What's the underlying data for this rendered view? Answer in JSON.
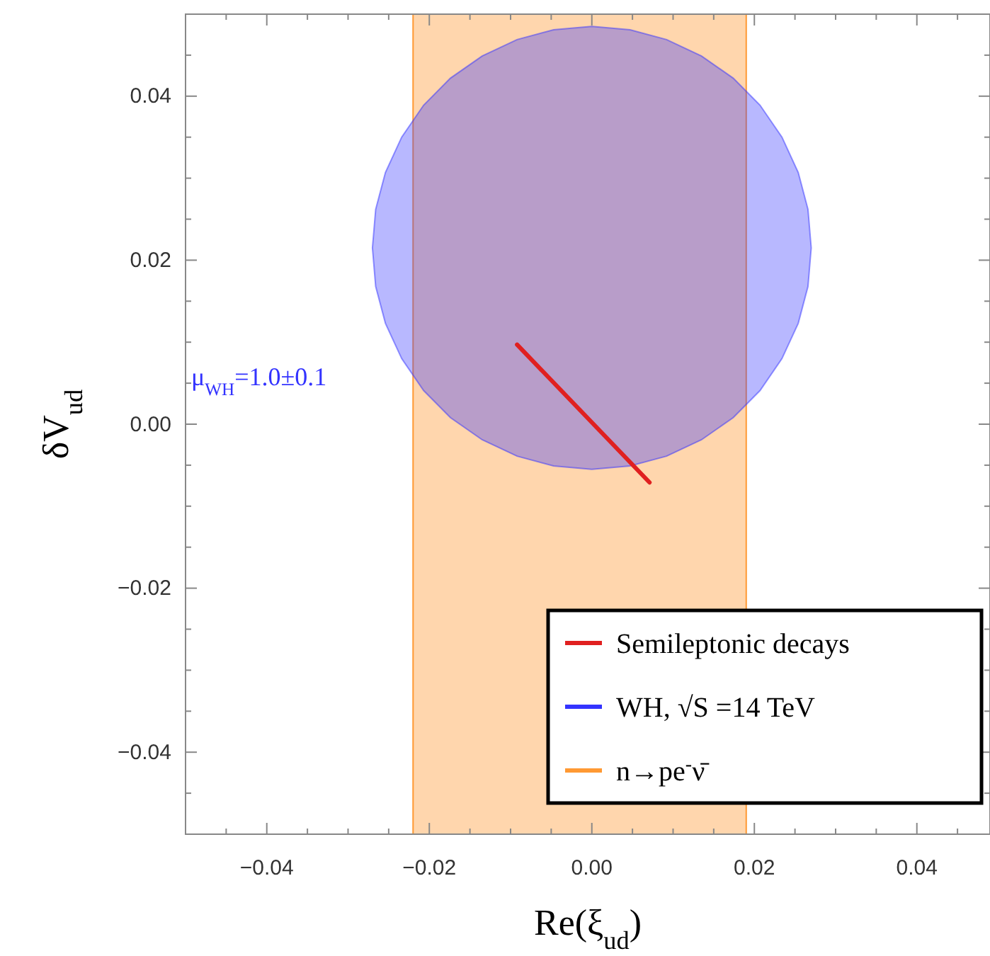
{
  "chart_data": {
    "type": "area",
    "xlabel": "Re(ξ$_{ud}$)",
    "ylabel": "δV$_{ud}$",
    "xlim": [
      -0.05,
      0.049
    ],
    "ylim": [
      -0.05,
      0.05
    ],
    "xticks": [
      {
        "value": -0.045,
        "label": null
      },
      {
        "value": -0.04,
        "label": "−0.04"
      },
      {
        "value": -0.035,
        "label": null
      },
      {
        "value": -0.03,
        "label": null
      },
      {
        "value": -0.025,
        "label": null
      },
      {
        "value": -0.02,
        "label": "−0.02"
      },
      {
        "value": -0.015,
        "label": null
      },
      {
        "value": -0.01,
        "label": null
      },
      {
        "value": -0.005,
        "label": null
      },
      {
        "value": 0,
        "label": "0.00"
      },
      {
        "value": 0.005,
        "label": null
      },
      {
        "value": 0.01,
        "label": null
      },
      {
        "value": 0.015,
        "label": null
      },
      {
        "value": 0.02,
        "label": "0.02"
      },
      {
        "value": 0.025,
        "label": null
      },
      {
        "value": 0.03,
        "label": null
      },
      {
        "value": 0.035,
        "label": null
      },
      {
        "value": 0.04,
        "label": "0.04"
      },
      {
        "value": 0.045,
        "label": null
      }
    ],
    "yticks": [
      {
        "value": -0.045,
        "label": null
      },
      {
        "value": -0.04,
        "label": "−0.04"
      },
      {
        "value": -0.035,
        "label": null
      },
      {
        "value": -0.03,
        "label": null
      },
      {
        "value": -0.025,
        "label": null
      },
      {
        "value": -0.02,
        "label": "−0.02"
      },
      {
        "value": -0.015,
        "label": null
      },
      {
        "value": -0.01,
        "label": null
      },
      {
        "value": -0.005,
        "label": null
      },
      {
        "value": 0,
        "label": "0.00"
      },
      {
        "value": 0.005,
        "label": null
      },
      {
        "value": 0.01,
        "label": null
      },
      {
        "value": 0.015,
        "label": null
      },
      {
        "value": 0.02,
        "label": "0.02"
      },
      {
        "value": 0.025,
        "label": null
      },
      {
        "value": 0.03,
        "label": null
      },
      {
        "value": 0.035,
        "label": null
      },
      {
        "value": 0.04,
        "label": "0.04"
      },
      {
        "value": 0.045,
        "label": null
      }
    ],
    "bands": [
      {
        "axis": "x",
        "from": -0.022,
        "to": 0.019,
        "label": "n→pe$^{-}$ν̄",
        "color": "#ff9933"
      }
    ],
    "series": [
      {
        "name": "Semileptonic decays",
        "type": "line",
        "color": "#e02020",
        "x": [
          -0.0092,
          0.0071
        ],
        "values": [
          0.0097,
          -0.0071
        ]
      },
      {
        "name": "WH, √S =14 TeV",
        "color": "#3333ff",
        "x": [
          -0.027,
          -0.0266,
          -0.0254,
          -0.0234,
          -0.0207,
          -0.0174,
          -0.0135,
          -0.0092,
          -0.0047,
          0,
          0.0047,
          0.0092,
          0.0135,
          0.0174,
          0.0207,
          0.0234,
          0.0254,
          0.0266,
          0.027,
          0.0266,
          0.0254,
          0.0234,
          0.0207,
          0.0174,
          0.0135,
          0.0092,
          0.0047,
          0,
          -0.0047,
          -0.0092,
          -0.0135,
          -0.0174,
          -0.0207,
          -0.0234,
          -0.0254,
          -0.0266
        ],
        "values": [
          0.0215,
          0.0262,
          0.0307,
          0.035,
          0.0389,
          0.0422,
          0.0449,
          0.0469,
          0.0481,
          0.0485,
          0.0481,
          0.0469,
          0.0449,
          0.0422,
          0.0389,
          0.035,
          0.0307,
          0.0262,
          0.0215,
          0.0168,
          0.0123,
          0.008,
          0.0041,
          0.0008,
          -0.0019,
          -0.0039,
          -0.0051,
          -0.0055,
          -0.0051,
          -0.0039,
          -0.0019,
          0.0008,
          0.0041,
          0.008,
          0.0123,
          0.0168
        ]
      }
    ],
    "annotations": [
      "μ$_{WH}$=1.0±0.1"
    ],
    "legend": "bottom right"
  }
}
